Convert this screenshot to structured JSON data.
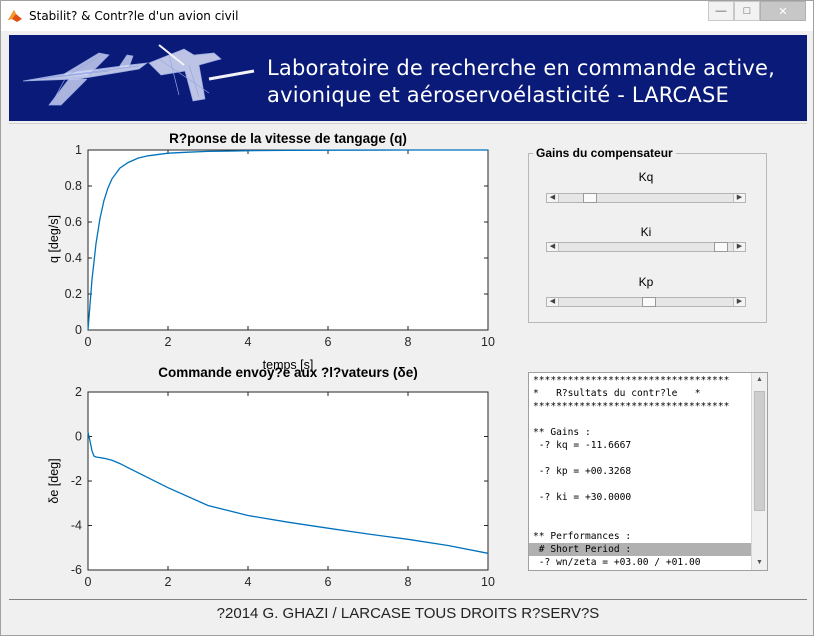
{
  "window": {
    "title": "Stabilit? & Contr?le d'un avion civil",
    "buttons": [
      "minimize",
      "maximize",
      "close"
    ]
  },
  "banner": {
    "line1": "Laboratoire de recherche en commande active,",
    "line2": "avionique et aéroservoélasticité - LARCASE",
    "background": "#0a1a78"
  },
  "plots": {
    "top": {
      "title": "R?ponse de la vitesse de tangage (q)",
      "ylabel": "q [deg/s]",
      "xlabel": "temps [s]",
      "xticks": [
        "0",
        "2",
        "4",
        "6",
        "8",
        "10"
      ],
      "yticks": [
        "0",
        "0.2",
        "0.4",
        "0.6",
        "0.8",
        "1"
      ]
    },
    "bottom": {
      "title": "Commande envoy?e aux ?l?vateurs (δe)",
      "ylabel": "δe [deg]",
      "xticks": [
        "0",
        "2",
        "4",
        "6",
        "8",
        "10"
      ],
      "yticks": [
        "2",
        "0",
        "-2",
        "-4",
        "-6"
      ]
    }
  },
  "chart_data": [
    {
      "type": "line",
      "title": "R?ponse de la vitesse de tangage (q)",
      "xlabel": "temps [s]",
      "ylabel": "q [deg/s]",
      "xlim": [
        0,
        10
      ],
      "ylim": [
        0,
        1
      ],
      "grid": false,
      "color": "#0072bd",
      "x": [
        0,
        0.1,
        0.2,
        0.3,
        0.4,
        0.5,
        0.6,
        0.8,
        1.0,
        1.25,
        1.5,
        2.0,
        2.5,
        3.0,
        3.5,
        4.0,
        5.0,
        6.0,
        8.0,
        10.0
      ],
      "y": [
        0,
        0.28,
        0.48,
        0.62,
        0.72,
        0.79,
        0.84,
        0.9,
        0.93,
        0.955,
        0.968,
        0.982,
        0.988,
        0.992,
        0.994,
        0.996,
        0.998,
        0.999,
        1.0,
        1.0
      ]
    },
    {
      "type": "line",
      "title": "Commande envoy?e aux ?l?vateurs (δe)",
      "xlabel": "",
      "ylabel": "δe [deg]",
      "xlim": [
        0,
        10
      ],
      "ylim": [
        -6,
        2
      ],
      "grid": false,
      "color": "#0072bd",
      "x": [
        0,
        0.05,
        0.1,
        0.15,
        0.2,
        0.3,
        0.4,
        0.5,
        0.6,
        0.8,
        1.0,
        1.5,
        2.0,
        3.0,
        4.0,
        5.0,
        6.0,
        7.0,
        8.0,
        9.0,
        10.0
      ],
      "y": [
        0.2,
        -0.2,
        -0.65,
        -0.88,
        -0.92,
        -0.95,
        -0.98,
        -1.02,
        -1.07,
        -1.22,
        -1.4,
        -1.85,
        -2.3,
        -3.1,
        -3.55,
        -3.85,
        -4.12,
        -4.38,
        -4.62,
        -4.9,
        -5.25
      ]
    }
  ],
  "gains": {
    "title": "Gains du compensateur",
    "sliders": [
      {
        "label": "Kq",
        "value": 0.15
      },
      {
        "label": "Ki",
        "value": 0.97
      },
      {
        "label": "Kp",
        "value": 0.52
      }
    ]
  },
  "results": {
    "lines": [
      "**********************************",
      "*   R?sultats du contr?le   *",
      "**********************************",
      "",
      "** Gains :",
      " -? kq = -11.6667",
      "",
      " -? kp = +00.3268",
      "",
      " -? ki = +30.0000",
      "",
      "",
      "** Performances :",
      " # Short Period :",
      " -? wn/zeta = +03.00 / +01.00"
    ],
    "highlighted_line": 13
  },
  "footer": {
    "text": "?2014 G. GHAZI / LARCASE TOUS DROITS R?SERV?S"
  }
}
